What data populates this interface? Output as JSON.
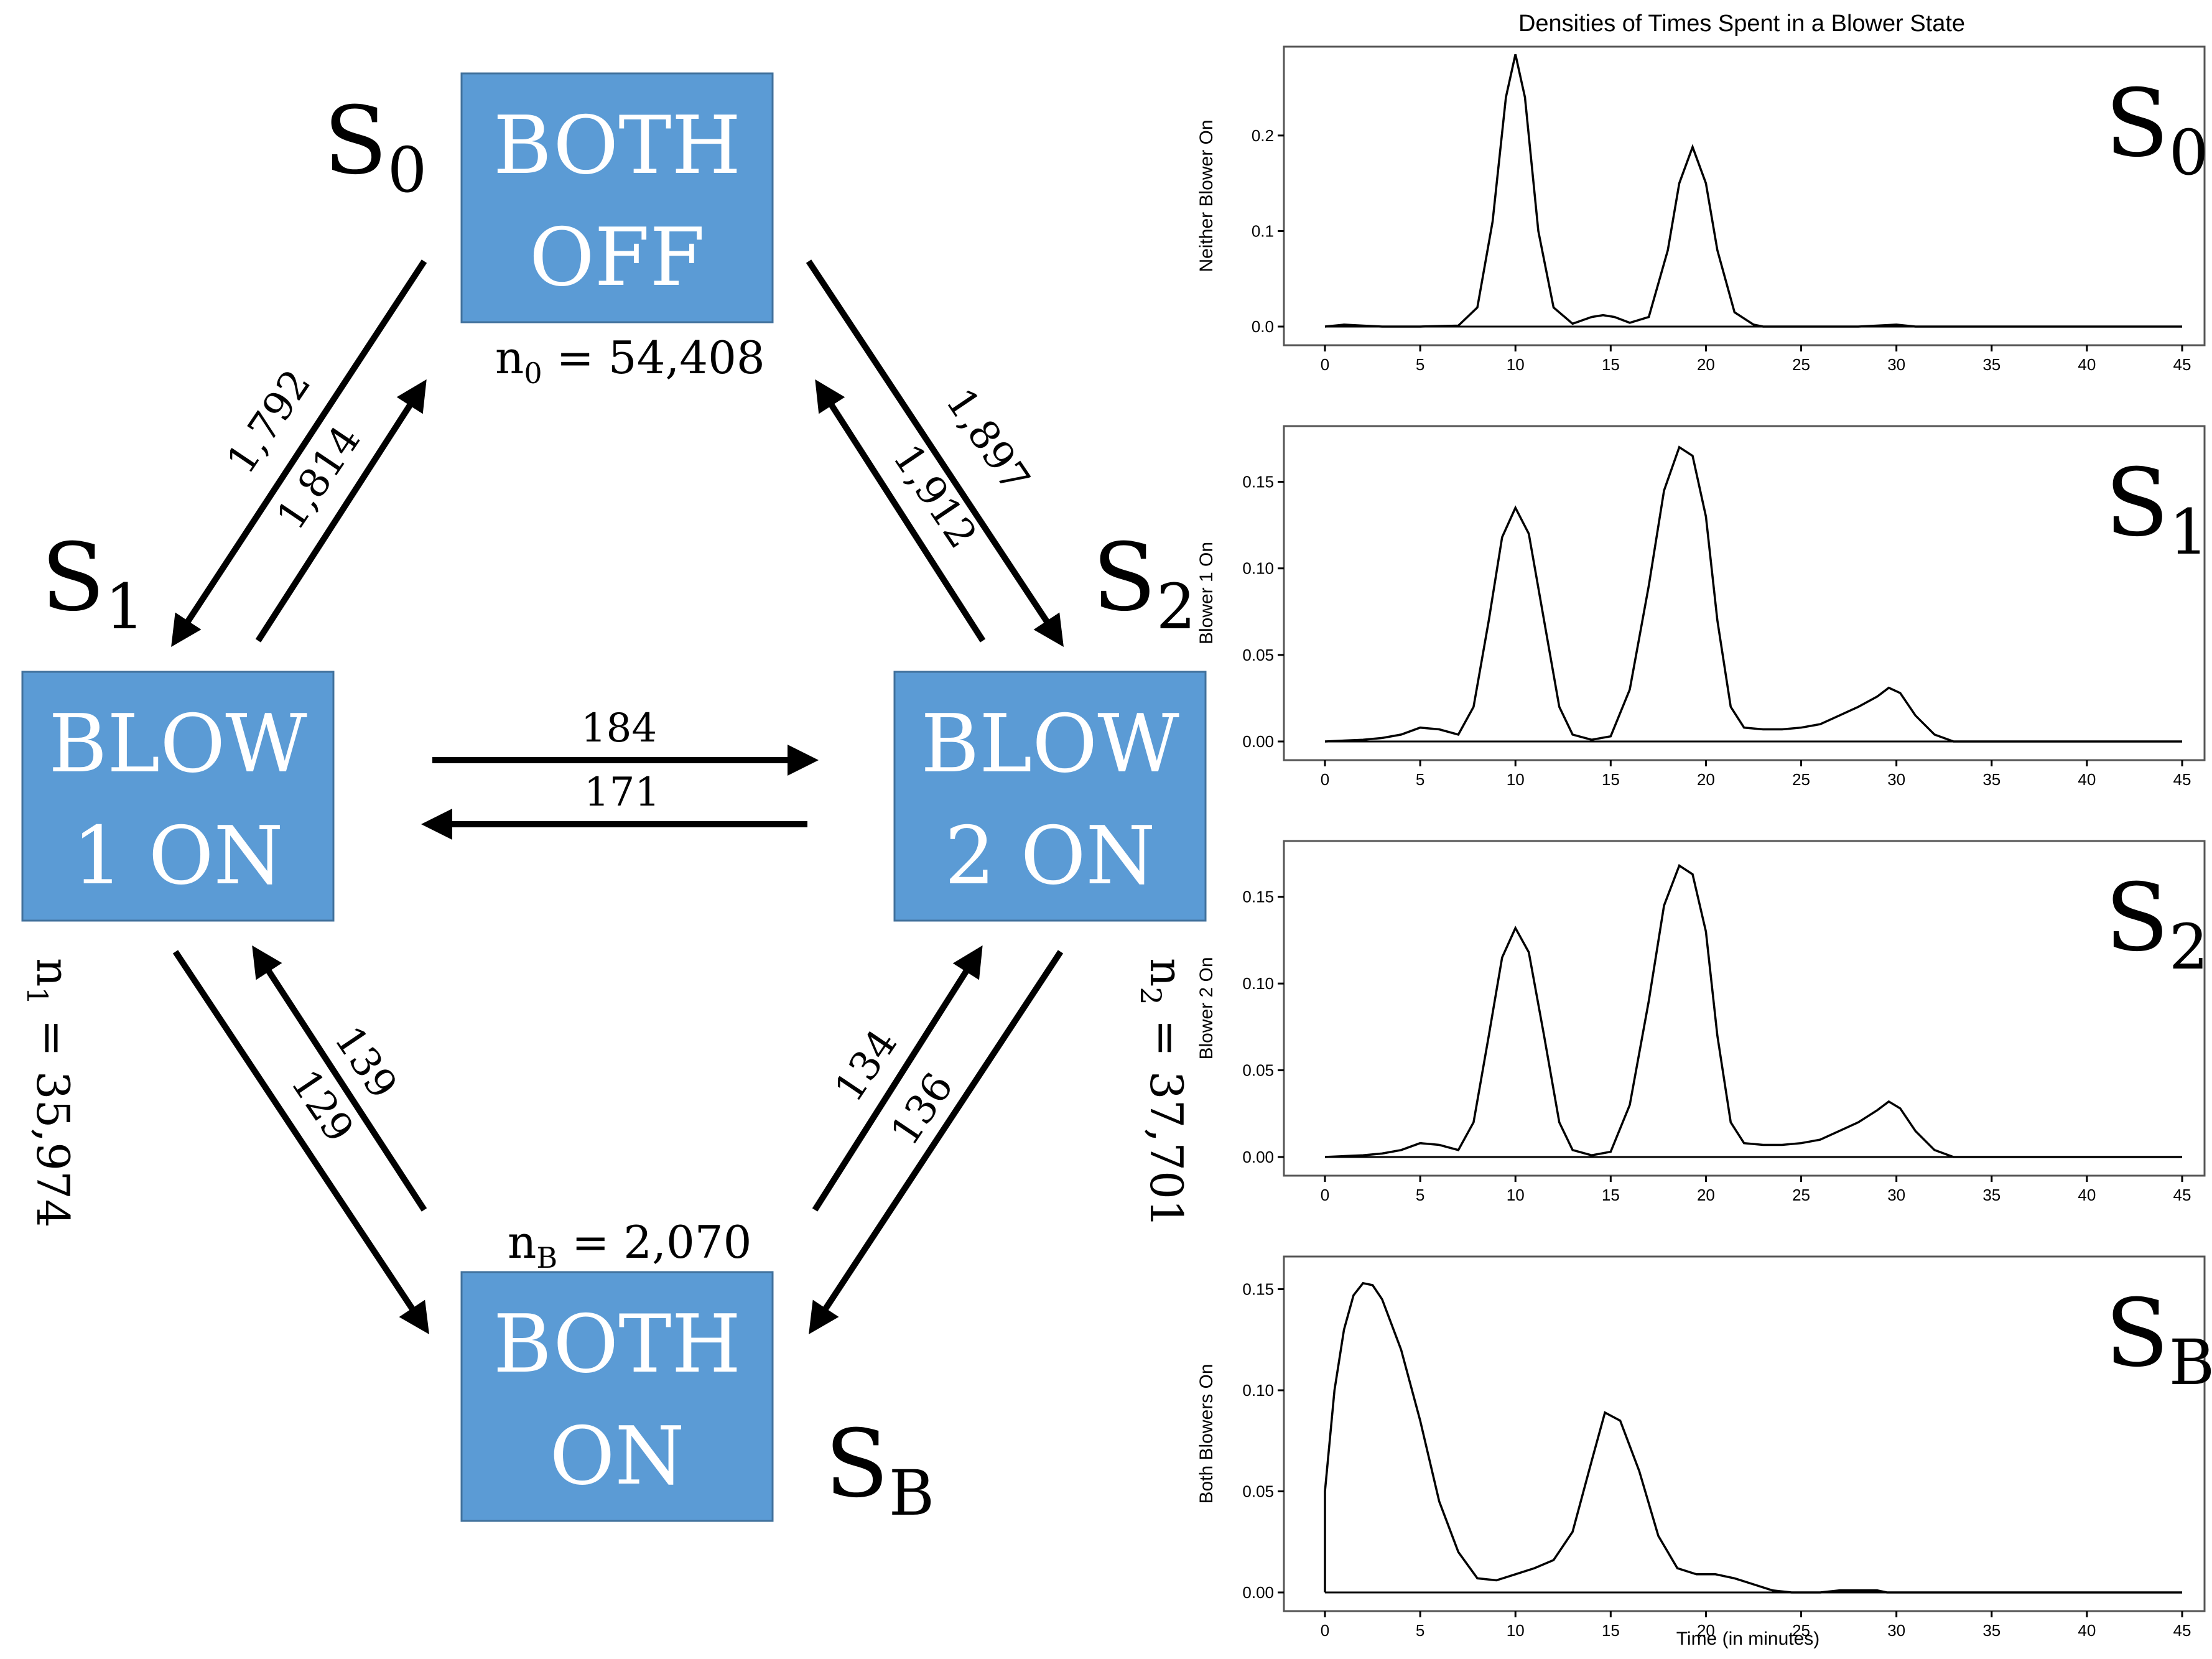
{
  "diagram": {
    "states": {
      "s0": {
        "symbol": "S",
        "subscript": "0",
        "line1": "BOTH",
        "line2": "OFF",
        "count_prefix": "n",
        "count_sub": "0",
        "count_value": " = 54,408"
      },
      "s1": {
        "symbol": "S",
        "subscript": "1",
        "line1": "BLOW",
        "line2": "1 ON",
        "count_prefix": "n",
        "count_sub": "1",
        "count_value": " = 35,974"
      },
      "s2": {
        "symbol": "S",
        "subscript": "2",
        "line1": "BLOW",
        "line2": "2 ON",
        "count_prefix": "n",
        "count_sub": "2",
        "count_value": " = 37,701"
      },
      "sb": {
        "symbol": "S",
        "subscript": "B",
        "line1": "BOTH",
        "line2": "ON",
        "count_prefix": "n",
        "count_sub": "B",
        "count_value": " = 2,070"
      }
    },
    "transitions": {
      "s0_to_s1": "1,792",
      "s1_to_s0": "1,814",
      "s0_to_s2": "1,897",
      "s2_to_s0": "1,912",
      "s1_to_s2": "184",
      "s2_to_s1": "171",
      "s1_to_sb": "129",
      "sb_to_s1": "139",
      "sb_to_s2": "134",
      "s2_to_sb": "136"
    },
    "box_color": "#5b9bd5"
  },
  "chart_data": {
    "type": "line",
    "title": "Densities of Times Spent in a Blower State",
    "xlabel": "Time (in minutes)",
    "xlim": [
      0,
      45
    ],
    "xticks": [
      0,
      5,
      10,
      15,
      20,
      25,
      30,
      35,
      40,
      45
    ],
    "panels": [
      {
        "ylabel": "Neither Blower On",
        "state_symbol": "S",
        "state_sub": "0",
        "ylim": [
          0,
          0.28
        ],
        "yticks": [
          "0.0",
          "0.1",
          "0.2"
        ],
        "ytick_values": [
          0.0,
          0.1,
          0.2
        ],
        "x": [
          0,
          1,
          2,
          3,
          5,
          7,
          8,
          8.8,
          9.5,
          10,
          10.5,
          11.2,
          12,
          13,
          14,
          14.6,
          15.2,
          16,
          17,
          18,
          18.6,
          19.3,
          20,
          20.6,
          21.5,
          22.5,
          23,
          28,
          30,
          31,
          45
        ],
        "values": [
          0,
          0.002,
          0.001,
          0,
          0,
          0.001,
          0.02,
          0.11,
          0.24,
          0.285,
          0.24,
          0.1,
          0.02,
          0.003,
          0.01,
          0.012,
          0.01,
          0.004,
          0.01,
          0.08,
          0.15,
          0.188,
          0.15,
          0.08,
          0.015,
          0.002,
          0,
          0,
          0.002,
          0,
          0
        ]
      },
      {
        "ylabel": "Blower 1 On",
        "state_symbol": "S",
        "state_sub": "1",
        "ylim": [
          0,
          0.175
        ],
        "yticks": [
          "0.00",
          "0.05",
          "0.10",
          "0.15"
        ],
        "ytick_values": [
          0.0,
          0.05,
          0.1,
          0.15
        ],
        "x": [
          0,
          2,
          3,
          4,
          5,
          6,
          7,
          7.8,
          8.6,
          9.3,
          10,
          10.7,
          11.5,
          12.3,
          13,
          14,
          15,
          16,
          17,
          17.8,
          18.6,
          19.3,
          20,
          20.6,
          21.3,
          22,
          23,
          24,
          25,
          26,
          27,
          28,
          29,
          29.6,
          30.2,
          31,
          32,
          33,
          45
        ],
        "values": [
          0,
          0.001,
          0.002,
          0.004,
          0.008,
          0.007,
          0.004,
          0.02,
          0.07,
          0.118,
          0.135,
          0.12,
          0.07,
          0.02,
          0.004,
          0.001,
          0.003,
          0.03,
          0.09,
          0.145,
          0.17,
          0.165,
          0.13,
          0.07,
          0.02,
          0.008,
          0.007,
          0.007,
          0.008,
          0.01,
          0.015,
          0.02,
          0.026,
          0.031,
          0.028,
          0.015,
          0.004,
          0,
          0
        ]
      },
      {
        "ylabel": "Blower 2 On",
        "state_symbol": "S",
        "state_sub": "2",
        "ylim": [
          0,
          0.175
        ],
        "yticks": [
          "0.00",
          "0.05",
          "0.10",
          "0.15"
        ],
        "ytick_values": [
          0.0,
          0.05,
          0.1,
          0.15
        ],
        "x": [
          0,
          2,
          3,
          4,
          5,
          6,
          7,
          7.8,
          8.6,
          9.3,
          10,
          10.7,
          11.5,
          12.3,
          13,
          14,
          15,
          16,
          17,
          17.8,
          18.6,
          19.3,
          20,
          20.6,
          21.3,
          22,
          23,
          24,
          25,
          26,
          27,
          28,
          29,
          29.6,
          30.2,
          31,
          32,
          33,
          45
        ],
        "values": [
          0,
          0.001,
          0.002,
          0.004,
          0.008,
          0.007,
          0.004,
          0.02,
          0.07,
          0.115,
          0.132,
          0.118,
          0.07,
          0.02,
          0.004,
          0.001,
          0.003,
          0.03,
          0.09,
          0.145,
          0.168,
          0.163,
          0.13,
          0.07,
          0.02,
          0.008,
          0.007,
          0.007,
          0.008,
          0.01,
          0.015,
          0.02,
          0.027,
          0.032,
          0.028,
          0.015,
          0.004,
          0,
          0
        ]
      },
      {
        "ylabel": "Both Blowers On",
        "state_symbol": "S",
        "state_sub": "B",
        "ylim": [
          0,
          0.16
        ],
        "yticks": [
          "0.00",
          "0.05",
          "0.10",
          "0.15"
        ],
        "ytick_values": [
          0.0,
          0.05,
          0.1,
          0.15
        ],
        "x": [
          0,
          0.5,
          1,
          1.5,
          2,
          2.5,
          3,
          4,
          5,
          6,
          7,
          8,
          9,
          10,
          11,
          12,
          13,
          14,
          14.7,
          15.5,
          16.5,
          17.5,
          18.5,
          19.5,
          20.5,
          21.5,
          22.5,
          23.5,
          24.5,
          26,
          27,
          29,
          29.5,
          45
        ],
        "values": [
          0.05,
          0.1,
          0.13,
          0.147,
          0.153,
          0.152,
          0.145,
          0.12,
          0.085,
          0.045,
          0.02,
          0.007,
          0.006,
          0.009,
          0.012,
          0.016,
          0.03,
          0.065,
          0.089,
          0.085,
          0.06,
          0.028,
          0.012,
          0.009,
          0.009,
          0.007,
          0.004,
          0.001,
          0,
          0,
          0.001,
          0.001,
          0,
          0
        ]
      }
    ]
  }
}
